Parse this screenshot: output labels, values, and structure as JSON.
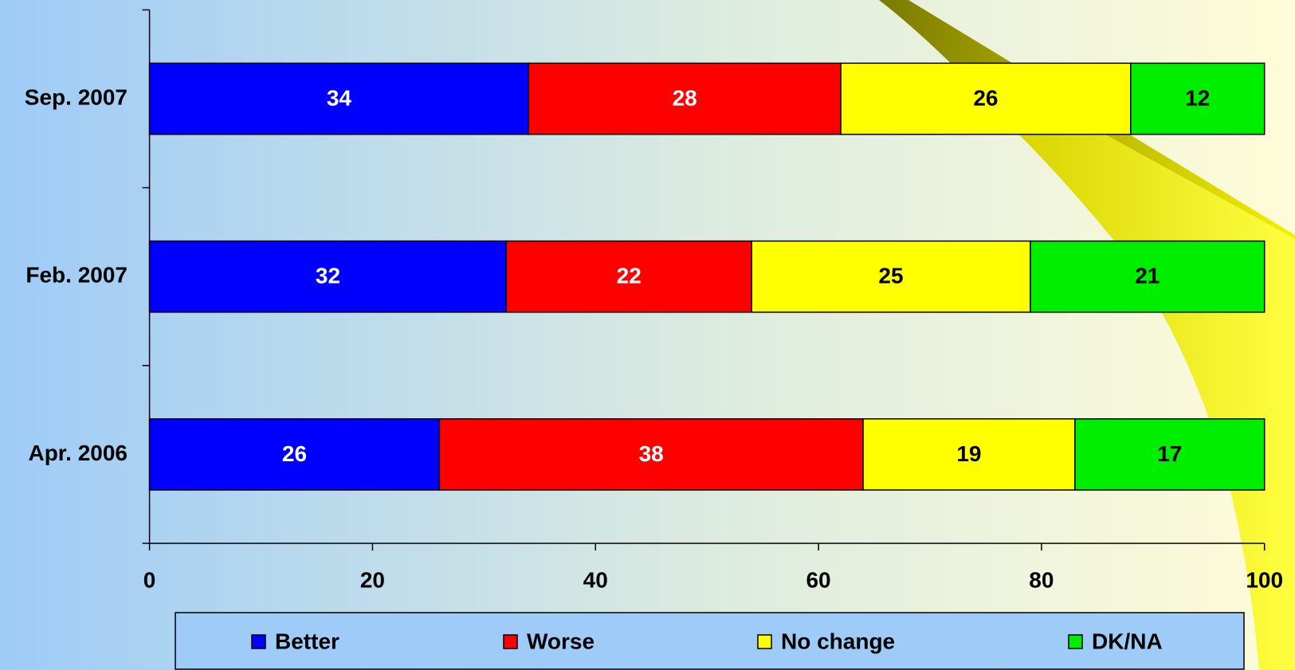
{
  "chart_data": {
    "type": "stacked-bar-horizontal",
    "categories": [
      "Sep. 2007",
      "Feb. 2007",
      "Apr. 2006"
    ],
    "series": [
      {
        "name": "Better",
        "color": "#0000ff",
        "values": [
          34,
          32,
          26
        ]
      },
      {
        "name": "Worse",
        "color": "#ff0000",
        "values": [
          28,
          22,
          38
        ]
      },
      {
        "name": "No change",
        "color": "#ffff00",
        "values": [
          26,
          25,
          19
        ]
      },
      {
        "name": "DK/NA",
        "color": "#00ee00",
        "values": [
          12,
          21,
          17
        ]
      }
    ],
    "xlim": [
      0,
      100
    ],
    "xticks": [
      0,
      20,
      40,
      60,
      80,
      100
    ],
    "legend": "bottom"
  }
}
